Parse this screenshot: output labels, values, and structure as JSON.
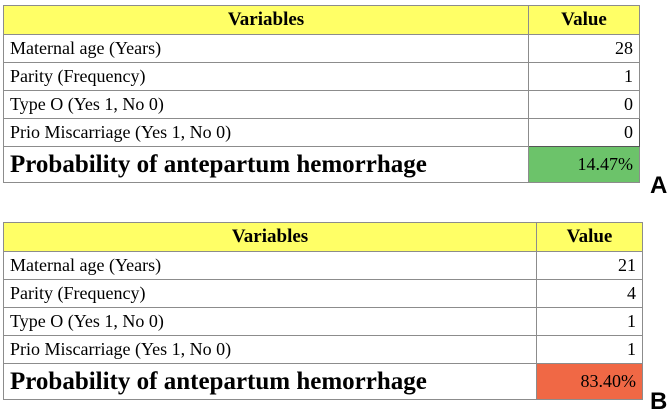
{
  "panels": [
    {
      "letter": "A",
      "headers": {
        "variables": "Variables",
        "value": "Value"
      },
      "rows": [
        {
          "label": "Maternal age (Years)",
          "value": "28"
        },
        {
          "label": "Parity (Frequency)",
          "value": "1"
        },
        {
          "label": "Type O (Yes 1, No 0)",
          "value": "0"
        },
        {
          "label": "Prio Miscarriage (Yes 1, No 0)",
          "value": "0"
        }
      ],
      "result": {
        "label": "Probability of antepartum hemorrhage",
        "value": "14.47%",
        "color": "#6cc36a"
      }
    },
    {
      "letter": "B",
      "headers": {
        "variables": "Variables",
        "value": "Value"
      },
      "rows": [
        {
          "label": "Maternal age (Years)",
          "value": "21"
        },
        {
          "label": "Parity (Frequency)",
          "value": "4"
        },
        {
          "label": "Type O (Yes 1, No 0)",
          "value": "1"
        },
        {
          "label": "Prio Miscarriage (Yes 1, No 0)",
          "value": "1"
        }
      ],
      "result": {
        "label": "Probability of antepartum hemorrhage",
        "value": "83.40%",
        "color": "#f06845"
      }
    }
  ],
  "colors": {
    "header_bg": "#ffff66"
  }
}
